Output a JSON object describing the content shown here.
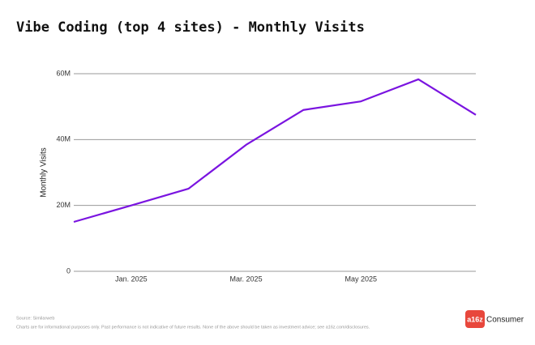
{
  "chart_data": {
    "type": "line",
    "title": "Vibe Coding (top 4 sites) - Monthly Visits",
    "y_label": "Monthly Visits",
    "categories": [
      null,
      "Jan. 2025",
      null,
      "Mar. 2025",
      null,
      "May 2025",
      null,
      null
    ],
    "series": [
      {
        "name": "Monthly Visits",
        "color": "#7a14e0",
        "values": [
          15.0,
          20.0,
          25.1,
          38.4,
          49.0,
          51.6,
          58.3,
          47.5
        ]
      }
    ],
    "ylim": [
      0,
      60
    ],
    "yticks": [
      0,
      {
        "value": 20,
        "label": "20M"
      },
      {
        "value": 40,
        "label": "40M"
      },
      {
        "value": 60,
        "label": "60M"
      }
    ],
    "grid": true
  },
  "footer": {
    "source": "Source: Similarweb",
    "disclaimer": "Charts are for informational purposes only. Past performance is not indicative of future results. None of the above should be taken as investment advice; see a16z.com/disclosures.",
    "logo_mark": "a16z",
    "logo_text": "Consumer"
  }
}
